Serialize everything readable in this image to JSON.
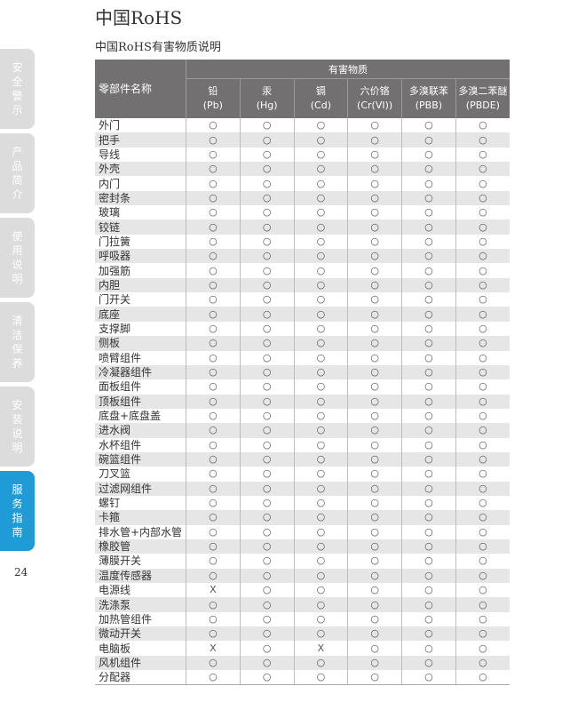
{
  "page": {
    "title": "中国RoHS",
    "subtitle": "中国RoHS有害物质说明",
    "page_number": "24"
  },
  "sidebar": {
    "active_color": "#1f9bd7",
    "inactive_color": "#dcdcdc",
    "tabs": [
      {
        "label": "安全警示",
        "active": false
      },
      {
        "label": "产品简介",
        "active": false
      },
      {
        "label": "使用说明",
        "active": false
      },
      {
        "label": "清洁保养",
        "active": false
      },
      {
        "label": "安装说明",
        "active": false
      },
      {
        "label": "服务指南",
        "active": true
      }
    ]
  },
  "table": {
    "name_header": "零部件名称",
    "group_header": "有害物质",
    "columns": [
      {
        "name": "铅",
        "symbol": "(Pb)"
      },
      {
        "name": "汞",
        "symbol": "(Hg)"
      },
      {
        "name": "镉",
        "symbol": "(Cd)"
      },
      {
        "name": "六价铬",
        "symbol": "(Cr(VI))"
      },
      {
        "name": "多溴联苯",
        "symbol": "(PBB)"
      },
      {
        "name": "多溴二苯醚",
        "symbol": "(PBDE)"
      }
    ],
    "rows": [
      {
        "part": "外门",
        "values": [
          "○",
          "○",
          "○",
          "○",
          "○",
          "○"
        ]
      },
      {
        "part": "把手",
        "values": [
          "○",
          "○",
          "○",
          "○",
          "○",
          "○"
        ]
      },
      {
        "part": "导线",
        "values": [
          "○",
          "○",
          "○",
          "○",
          "○",
          "○"
        ]
      },
      {
        "part": "外壳",
        "values": [
          "○",
          "○",
          "○",
          "○",
          "○",
          "○"
        ]
      },
      {
        "part": "内门",
        "values": [
          "○",
          "○",
          "○",
          "○",
          "○",
          "○"
        ]
      },
      {
        "part": "密封条",
        "values": [
          "○",
          "○",
          "○",
          "○",
          "○",
          "○"
        ]
      },
      {
        "part": "玻璃",
        "values": [
          "○",
          "○",
          "○",
          "○",
          "○",
          "○"
        ]
      },
      {
        "part": "铰链",
        "values": [
          "○",
          "○",
          "○",
          "○",
          "○",
          "○"
        ]
      },
      {
        "part": "门拉簧",
        "values": [
          "○",
          "○",
          "○",
          "○",
          "○",
          "○"
        ]
      },
      {
        "part": "呼吸器",
        "values": [
          "○",
          "○",
          "○",
          "○",
          "○",
          "○"
        ]
      },
      {
        "part": "加强筋",
        "values": [
          "○",
          "○",
          "○",
          "○",
          "○",
          "○"
        ]
      },
      {
        "part": "内胆",
        "values": [
          "○",
          "○",
          "○",
          "○",
          "○",
          "○"
        ]
      },
      {
        "part": "门开关",
        "values": [
          "○",
          "○",
          "○",
          "○",
          "○",
          "○"
        ]
      },
      {
        "part": "底座",
        "values": [
          "○",
          "○",
          "○",
          "○",
          "○",
          "○"
        ]
      },
      {
        "part": "支撑脚",
        "values": [
          "○",
          "○",
          "○",
          "○",
          "○",
          "○"
        ]
      },
      {
        "part": "侧板",
        "values": [
          "○",
          "○",
          "○",
          "○",
          "○",
          "○"
        ]
      },
      {
        "part": "喷臂组件",
        "values": [
          "○",
          "○",
          "○",
          "○",
          "○",
          "○"
        ]
      },
      {
        "part": "冷凝器组件",
        "values": [
          "○",
          "○",
          "○",
          "○",
          "○",
          "○"
        ]
      },
      {
        "part": "面板组件",
        "values": [
          "○",
          "○",
          "○",
          "○",
          "○",
          "○"
        ]
      },
      {
        "part": "顶板组件",
        "values": [
          "○",
          "○",
          "○",
          "○",
          "○",
          "○"
        ]
      },
      {
        "part": "底盘+底盘盖",
        "values": [
          "○",
          "○",
          "○",
          "○",
          "○",
          "○"
        ]
      },
      {
        "part": "进水阀",
        "values": [
          "○",
          "○",
          "○",
          "○",
          "○",
          "○"
        ]
      },
      {
        "part": "水杯组件",
        "values": [
          "○",
          "○",
          "○",
          "○",
          "○",
          "○"
        ]
      },
      {
        "part": "碗篮组件",
        "values": [
          "○",
          "○",
          "○",
          "○",
          "○",
          "○"
        ]
      },
      {
        "part": "刀叉篮",
        "values": [
          "○",
          "○",
          "○",
          "○",
          "○",
          "○"
        ]
      },
      {
        "part": "过滤网组件",
        "values": [
          "○",
          "○",
          "○",
          "○",
          "○",
          "○"
        ]
      },
      {
        "part": "螺钉",
        "values": [
          "○",
          "○",
          "○",
          "○",
          "○",
          "○"
        ]
      },
      {
        "part": "卡箍",
        "values": [
          "○",
          "○",
          "○",
          "○",
          "○",
          "○"
        ]
      },
      {
        "part": "排水管+内部水管",
        "values": [
          "○",
          "○",
          "○",
          "○",
          "○",
          "○"
        ]
      },
      {
        "part": "橡胶管",
        "values": [
          "○",
          "○",
          "○",
          "○",
          "○",
          "○"
        ]
      },
      {
        "part": "薄膜开关",
        "values": [
          "○",
          "○",
          "○",
          "○",
          "○",
          "○"
        ]
      },
      {
        "part": "温度传感器",
        "values": [
          "○",
          "○",
          "○",
          "○",
          "○",
          "○"
        ]
      },
      {
        "part": "电源线",
        "values": [
          "X",
          "○",
          "○",
          "○",
          "○",
          "○"
        ]
      },
      {
        "part": "洗涤泵",
        "values": [
          "○",
          "○",
          "○",
          "○",
          "○",
          "○"
        ]
      },
      {
        "part": "加热管组件",
        "values": [
          "○",
          "○",
          "○",
          "○",
          "○",
          "○"
        ]
      },
      {
        "part": "微动开关",
        "values": [
          "○",
          "○",
          "○",
          "○",
          "○",
          "○"
        ]
      },
      {
        "part": "电脑板",
        "values": [
          "X",
          "○",
          "X",
          "○",
          "○",
          "○"
        ]
      },
      {
        "part": "风机组件",
        "values": [
          "○",
          "○",
          "○",
          "○",
          "○",
          "○"
        ]
      },
      {
        "part": "分配器",
        "values": [
          "○",
          "○",
          "○",
          "○",
          "○",
          "○"
        ]
      }
    ]
  }
}
